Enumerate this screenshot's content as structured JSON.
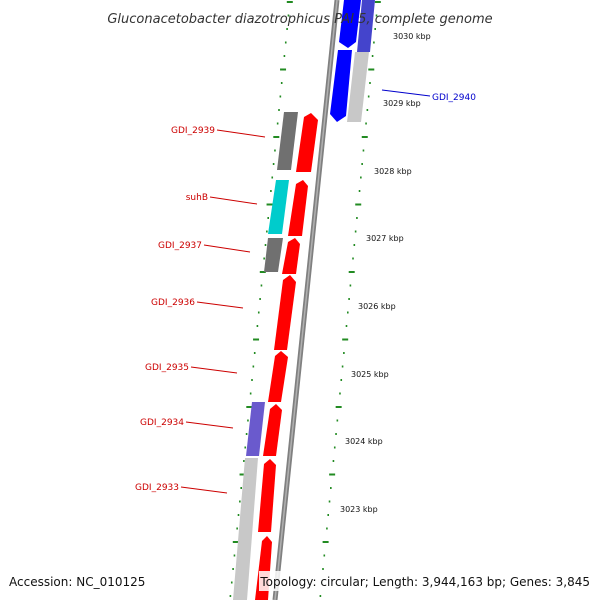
{
  "title": "Gluconacetobacter diazotrophicus PAI 5, complete genome",
  "footer": {
    "accession": "Accession: NC_010125",
    "topology": "Topology: circular; Length: 3,944,163 bp; Genes: 3,845"
  },
  "scale_labels": [
    "3030 kbp",
    "3029 kbp",
    "3028 kbp",
    "3027 kbp",
    "3026 kbp",
    "3025 kbp",
    "3024 kbp",
    "3023 kbp"
  ],
  "gene_labels": [
    {
      "name": "GDI_2940",
      "color": "#0000cc",
      "side": "right"
    },
    {
      "name": "GDI_2939",
      "color": "#cc0000",
      "side": "left"
    },
    {
      "name": "suhB",
      "color": "#cc0000",
      "side": "left"
    },
    {
      "name": "GDI_2937",
      "color": "#cc0000",
      "side": "left"
    },
    {
      "name": "GDI_2936",
      "color": "#cc0000",
      "side": "left"
    },
    {
      "name": "GDI_2935",
      "color": "#cc0000",
      "side": "left"
    },
    {
      "name": "GDI_2934",
      "color": "#cc0000",
      "side": "left"
    },
    {
      "name": "GDI_2933",
      "color": "#cc0000",
      "side": "left"
    }
  ],
  "colors": {
    "cds_forward": "#ff0000",
    "cds_reverse": "#0000ff",
    "cds_other": "#00cccc",
    "rna_grey": "#707070",
    "backbone": "#808080",
    "tick": "#228b22",
    "label_line_red": "#cc0000",
    "label_line_blue": "#0000cc",
    "lilac": "#6a5acd"
  }
}
